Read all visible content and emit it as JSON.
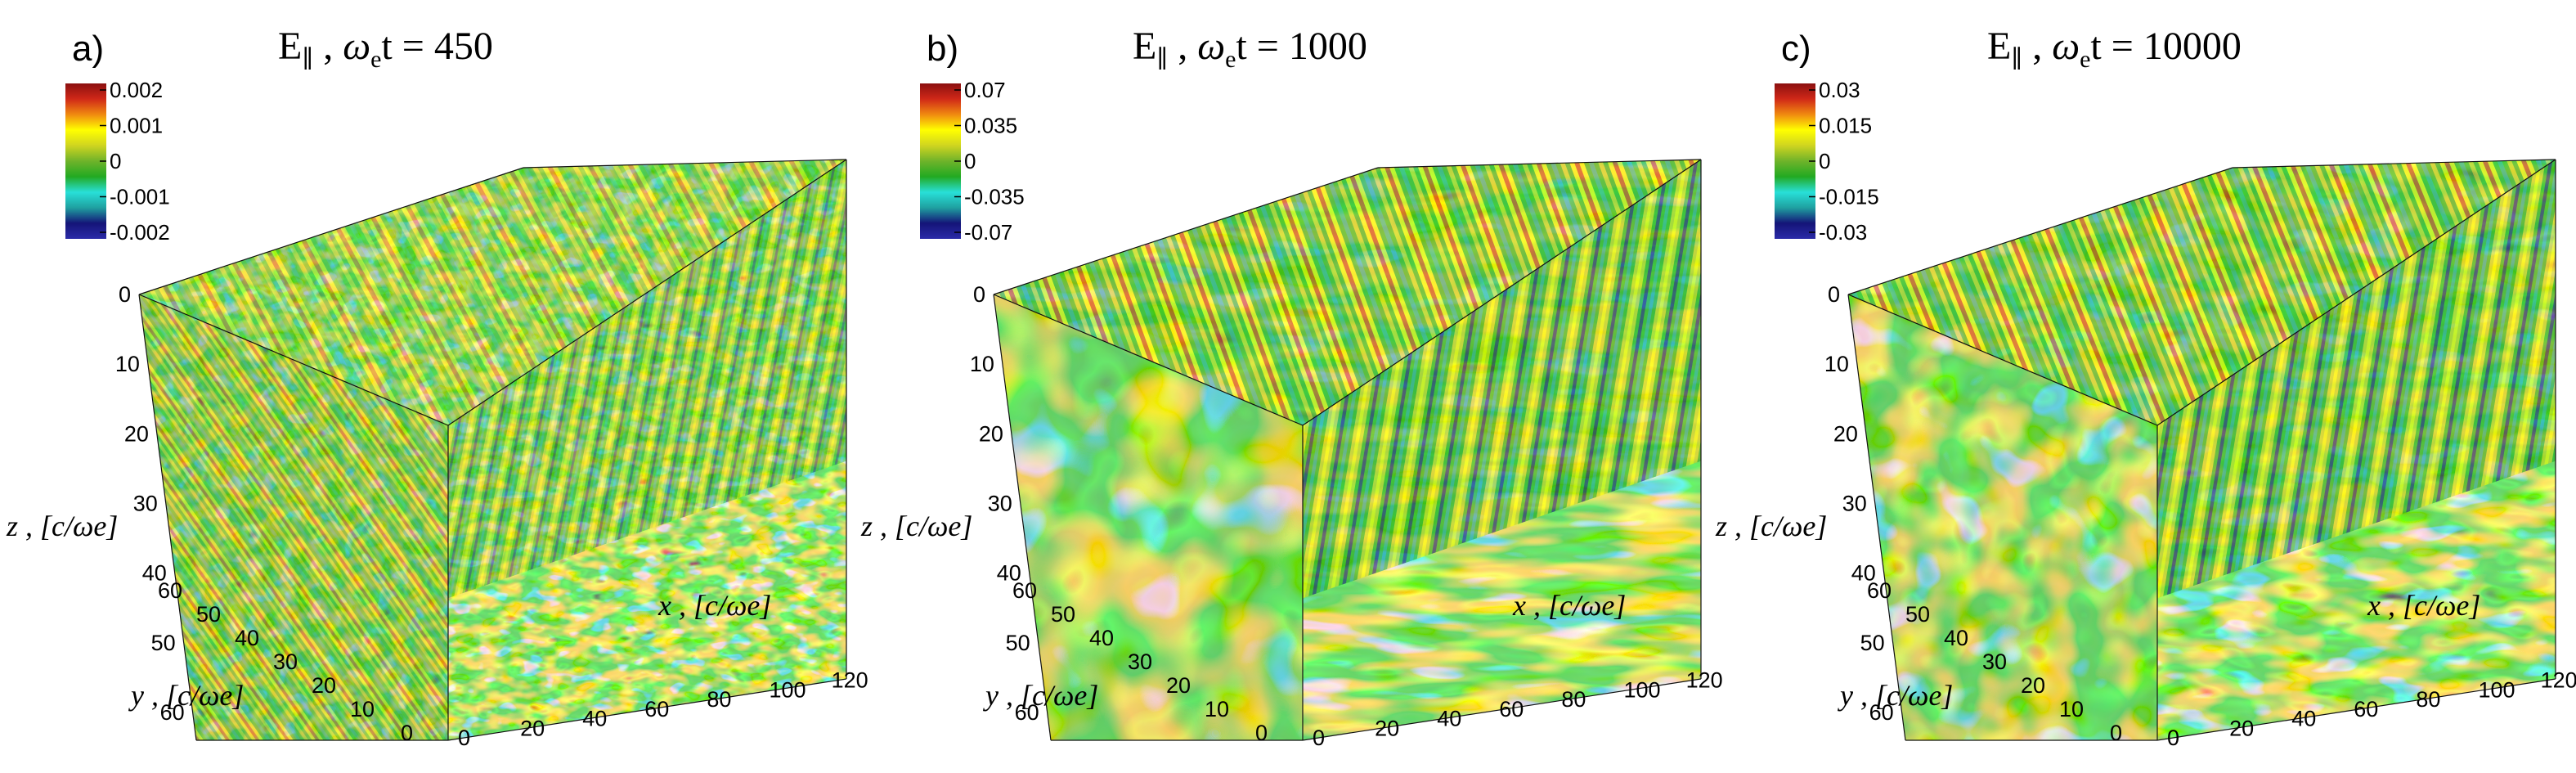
{
  "figure": {
    "colormap": [
      "#2b2ba8",
      "#141478",
      "#1fa0a0",
      "#28e0d8",
      "#22aa22",
      "#6fb32a",
      "#cfd420",
      "#ffff00",
      "#f08a10",
      "#d02818",
      "#8b1010"
    ]
  },
  "chart_data": [
    {
      "type": "heatmap",
      "panel_label": "a)",
      "title": "E∥ , ωet = 450",
      "title_parts": {
        "quantity": "E",
        "subscript": "∥",
        "lhs": "ω",
        "lhs_sub": "e",
        "rhs": "t = 450"
      },
      "colorbar": {
        "ticks": [
          "0.002",
          "0.001",
          "0",
          "-0.001",
          "-0.002"
        ],
        "range": [
          -0.002,
          0.002
        ]
      },
      "axes": {
        "x": {
          "label": "x , [c/ωe]",
          "ticks": [
            "0",
            "20",
            "40",
            "60",
            "80",
            "100",
            "120"
          ],
          "range": [
            0,
            128
          ]
        },
        "y": {
          "label": "y , [c/ωe]",
          "ticks": [
            "0",
            "10",
            "20",
            "30",
            "40",
            "50",
            "60"
          ],
          "range": [
            0,
            64
          ]
        },
        "z": {
          "label": "z , [c/ωe]",
          "ticks": [
            "0",
            "10",
            "20",
            "30",
            "40",
            "50",
            "60"
          ],
          "range": [
            0,
            64
          ]
        }
      }
    },
    {
      "type": "heatmap",
      "panel_label": "b)",
      "title": "E∥ , ωet = 1000",
      "title_parts": {
        "quantity": "E",
        "subscript": "∥",
        "lhs": "ω",
        "lhs_sub": "e",
        "rhs": "t = 1000"
      },
      "colorbar": {
        "ticks": [
          "0.07",
          "0.035",
          "0",
          "-0.035",
          "-0.07"
        ],
        "range": [
          -0.07,
          0.07
        ]
      },
      "axes": {
        "x": {
          "label": "x , [c/ωe]",
          "ticks": [
            "0",
            "20",
            "40",
            "60",
            "80",
            "100",
            "120"
          ],
          "range": [
            0,
            128
          ]
        },
        "y": {
          "label": "y , [c/ωe]",
          "ticks": [
            "0",
            "10",
            "20",
            "30",
            "40",
            "50",
            "60"
          ],
          "range": [
            0,
            64
          ]
        },
        "z": {
          "label": "z , [c/ωe]",
          "ticks": [
            "0",
            "10",
            "20",
            "30",
            "40",
            "50",
            "60"
          ],
          "range": [
            0,
            64
          ]
        }
      }
    },
    {
      "type": "heatmap",
      "panel_label": "c)",
      "title": "E∥ , ωet = 10000",
      "title_parts": {
        "quantity": "E",
        "subscript": "∥",
        "lhs": "ω",
        "lhs_sub": "e",
        "rhs": "t = 10000"
      },
      "colorbar": {
        "ticks": [
          "0.03",
          "0.015",
          "0",
          "-0.015",
          "-0.03"
        ],
        "range": [
          -0.03,
          0.03
        ]
      },
      "axes": {
        "x": {
          "label": "x , [c/ωe]",
          "ticks": [
            "0",
            "20",
            "40",
            "60",
            "80",
            "100",
            "120"
          ],
          "range": [
            0,
            128
          ]
        },
        "y": {
          "label": "y , [c/ωe]",
          "ticks": [
            "0",
            "10",
            "20",
            "30",
            "40",
            "50",
            "60"
          ],
          "range": [
            0,
            64
          ]
        },
        "z": {
          "label": "z , [c/ωe]",
          "ticks": [
            "0",
            "10",
            "20",
            "30",
            "40",
            "50",
            "60"
          ],
          "range": [
            0,
            64
          ]
        }
      }
    }
  ]
}
